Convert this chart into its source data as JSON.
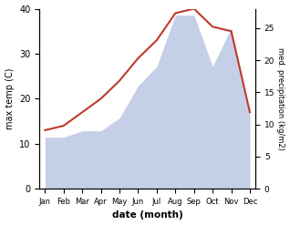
{
  "months": [
    "Jan",
    "Feb",
    "Mar",
    "Apr",
    "May",
    "Jun",
    "Jul",
    "Aug",
    "Sep",
    "Oct",
    "Nov",
    "Dec"
  ],
  "temp_values": [
    13,
    14,
    17,
    20,
    24,
    29,
    33,
    39,
    40,
    36,
    35,
    17
  ],
  "precip_kg": [
    8,
    8,
    9,
    9,
    11,
    16,
    19,
    27,
    27,
    19,
    25,
    12
  ],
  "temp_color": "#c0392b",
  "precip_color": "#c5cfe8",
  "background_color": "#ffffff",
  "ylabel_left": "max temp (C)",
  "ylabel_right": "med. precipitation (kg/m2)",
  "xlabel": "date (month)",
  "ylim_left": [
    0,
    40
  ],
  "ylim_right": [
    0,
    28
  ],
  "yticks_left": [
    0,
    10,
    20,
    30,
    40
  ],
  "yticks_right": [
    0,
    5,
    10,
    15,
    20,
    25
  ]
}
